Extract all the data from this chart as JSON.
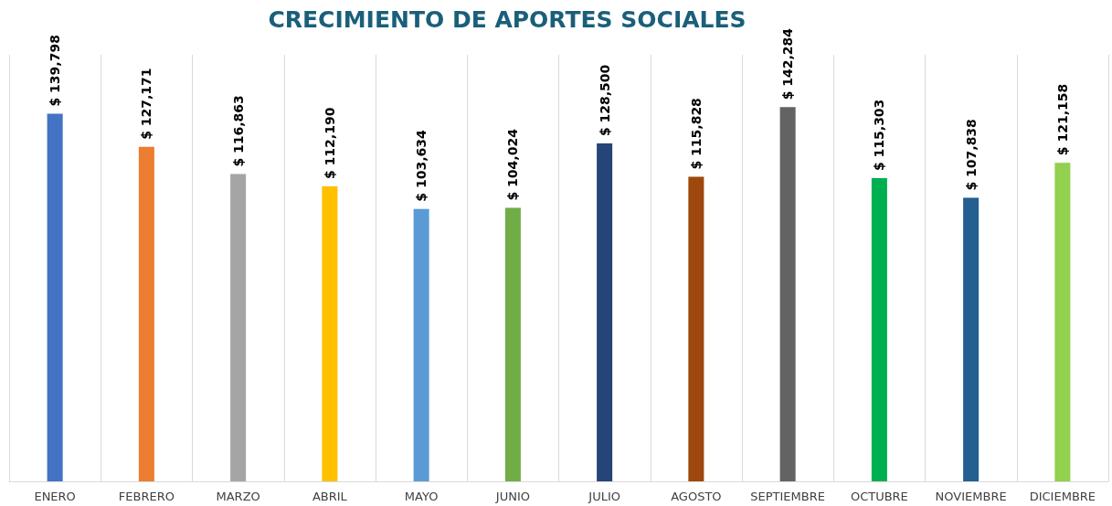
{
  "chart_data": {
    "type": "bar",
    "title": "CRECIMIENTO DE APORTES SOCIALES",
    "categories": [
      "ENERO",
      "FEBRERO",
      "MARZO",
      "ABRIL",
      "MAYO",
      "JUNIO",
      "JULIO",
      "AGOSTO",
      "SEPTIEMBRE",
      "OCTUBRE",
      "NOVIEMBRE",
      "DICIEMBRE"
    ],
    "values": [
      139798,
      127171,
      116863,
      112190,
      103634,
      104024,
      128500,
      115828,
      142284,
      115303,
      107838,
      121158
    ],
    "colors": [
      "#4472c4",
      "#ed7d31",
      "#a5a5a5",
      "#ffc000",
      "#5b9bd5",
      "#70ad47",
      "#264478",
      "#9e480e",
      "#636363",
      "#00b050",
      "#255e91",
      "#92d050"
    ],
    "value_labels": [
      "$ 139,798",
      "$ 127,171",
      "$ 116,863",
      "$ 112,190",
      "$ 103,634",
      "$ 104,024",
      "$ 128,500",
      "$ 115,828",
      "$ 142,284",
      "$ 115,303",
      "$ 107,838",
      "$ 121,158"
    ],
    "grid": "x"
  }
}
